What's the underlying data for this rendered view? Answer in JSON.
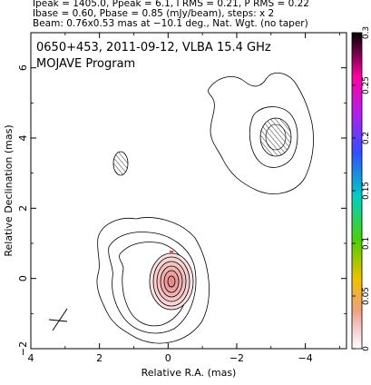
{
  "header": {
    "line1": "Ipeak = 1405.0, Ppeak = 6.1, I RMS = 0.21, P RMS = 0.22",
    "line2": "Ibase = 0.60, Pbase = 0.85 (mJy/beam), steps: x 2",
    "line3": "Beam: 0.76x0.53 mas at −10.1 deg., Nat. Wgt. (no taper)"
  },
  "chart_data": {
    "type": "contour",
    "title": "0650+453, 2011-09-12, VLBA 15.4 GHz",
    "subtitle": "MOJAVE Program",
    "xlabel": "Relative R.A. (mas)",
    "ylabel": "Relative Declination (mas)",
    "xlim": [
      4,
      -5.2
    ],
    "ylim": [
      -2,
      7
    ],
    "xticks": [
      "4",
      "2",
      "0",
      "−2",
      "−4"
    ],
    "xtick_values": [
      4,
      2,
      0,
      -2,
      -4
    ],
    "yticks": [
      "−2",
      "0",
      "2",
      "4",
      "6"
    ],
    "ytick_values": [
      -2,
      0,
      2,
      4,
      6
    ],
    "colorbar": {
      "ticks": [
        "0",
        "0.05",
        "0.1",
        "0.15",
        "0.2",
        "0.25",
        "0.3"
      ],
      "tick_values": [
        0,
        0.05,
        0.1,
        0.15,
        0.2,
        0.25,
        0.3
      ],
      "range": [
        0,
        0.3
      ]
    },
    "core": {
      "x": 0,
      "y": 0
    },
    "components": [
      {
        "x": 0,
        "y": 0,
        "type": "core"
      },
      {
        "x": -3.0,
        "y": 4.1,
        "type": "knot"
      },
      {
        "x": 1.4,
        "y": 3.3,
        "type": "knot"
      }
    ],
    "beam": {
      "major": 0.76,
      "minor": 0.53,
      "pa": -10.1
    }
  }
}
